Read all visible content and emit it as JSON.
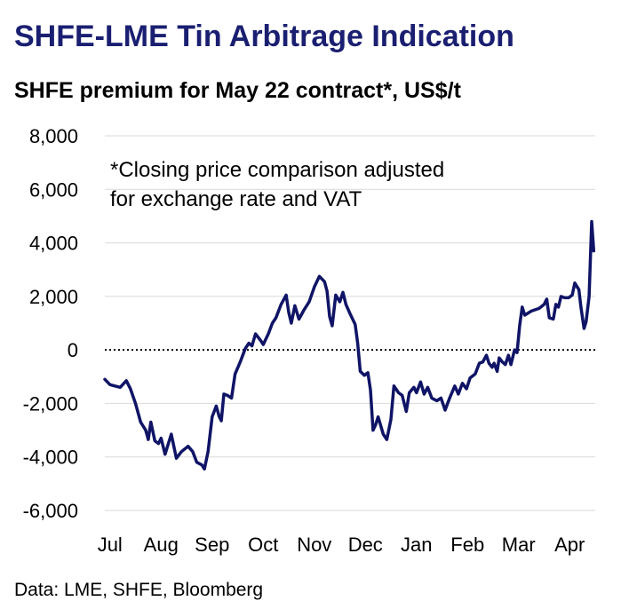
{
  "title": "SHFE-LME Tin Arbitrage Indication",
  "subtitle": "SHFE premium for May 22 contract*, US$/t",
  "source": "Data: LME, SHFE, Bloomberg",
  "colors": {
    "title": "#1a1f71",
    "line": "#0f1466",
    "grid": "#d9d9d9",
    "zero_line": "#000000"
  },
  "chart_data": {
    "type": "line",
    "title": "SHFE-LME Tin Arbitrage Indication",
    "ylabel": "SHFE premium for May 22 contract*, US$/t",
    "ylim": [
      -6000,
      8000
    ],
    "xlim": [
      0,
      9.6
    ],
    "yticks": [
      8000,
      6000,
      4000,
      2000,
      0,
      -2000,
      -4000,
      -6000
    ],
    "ytick_labels": [
      "8,000",
      "6,000",
      "4,000",
      "2,000",
      "0",
      "-2,000",
      "-4,000",
      "-6,000"
    ],
    "xtick_labels": [
      "Jul",
      "Aug",
      "Sep",
      "Oct",
      "Nov",
      "Dec",
      "Jan",
      "Feb",
      "Mar",
      "Apr"
    ],
    "grid": true,
    "zero_line": "dotted",
    "annotation_lines": [
      "*Closing price comparison adjusted",
      "for exchange rate and VAT"
    ],
    "series": [
      {
        "values": [
          [
            0.0,
            -1100
          ],
          [
            0.1,
            -1300
          ],
          [
            0.3,
            -1400
          ],
          [
            0.42,
            -1150
          ],
          [
            0.5,
            -1450
          ],
          [
            0.6,
            -2000
          ],
          [
            0.7,
            -2700
          ],
          [
            0.8,
            -3000
          ],
          [
            0.85,
            -3350
          ],
          [
            0.9,
            -2700
          ],
          [
            0.98,
            -3400
          ],
          [
            1.05,
            -3500
          ],
          [
            1.1,
            -3300
          ],
          [
            1.18,
            -3900
          ],
          [
            1.3,
            -3150
          ],
          [
            1.4,
            -4050
          ],
          [
            1.5,
            -3800
          ],
          [
            1.63,
            -3600
          ],
          [
            1.72,
            -3800
          ],
          [
            1.8,
            -4200
          ],
          [
            1.9,
            -4300
          ],
          [
            1.95,
            -4450
          ],
          [
            2.02,
            -3800
          ],
          [
            2.1,
            -2500
          ],
          [
            2.18,
            -2100
          ],
          [
            2.24,
            -2500
          ],
          [
            2.28,
            -2650
          ],
          [
            2.33,
            -1650
          ],
          [
            2.4,
            -1700
          ],
          [
            2.48,
            -1800
          ],
          [
            2.55,
            -900
          ],
          [
            2.65,
            -450
          ],
          [
            2.75,
            50
          ],
          [
            2.82,
            250
          ],
          [
            2.88,
            150
          ],
          [
            2.95,
            600
          ],
          [
            3.05,
            350
          ],
          [
            3.1,
            200
          ],
          [
            3.2,
            600
          ],
          [
            3.28,
            1000
          ],
          [
            3.35,
            1200
          ],
          [
            3.45,
            1700
          ],
          [
            3.55,
            2050
          ],
          [
            3.6,
            1400
          ],
          [
            3.65,
            1000
          ],
          [
            3.72,
            1650
          ],
          [
            3.8,
            1150
          ],
          [
            3.9,
            1500
          ],
          [
            4.0,
            1800
          ],
          [
            4.1,
            2350
          ],
          [
            4.2,
            2750
          ],
          [
            4.3,
            2550
          ],
          [
            4.35,
            2200
          ],
          [
            4.4,
            1250
          ],
          [
            4.45,
            900
          ],
          [
            4.52,
            2050
          ],
          [
            4.6,
            1800
          ],
          [
            4.66,
            2150
          ],
          [
            4.72,
            1700
          ],
          [
            4.8,
            1350
          ],
          [
            4.9,
            950
          ],
          [
            4.95,
            250
          ],
          [
            5.0,
            -800
          ],
          [
            5.08,
            -950
          ],
          [
            5.15,
            -850
          ],
          [
            5.2,
            -1500
          ],
          [
            5.25,
            -3000
          ],
          [
            5.3,
            -2800
          ],
          [
            5.35,
            -2500
          ],
          [
            5.45,
            -3150
          ],
          [
            5.52,
            -3350
          ],
          [
            5.6,
            -2600
          ],
          [
            5.66,
            -1350
          ],
          [
            5.75,
            -1600
          ],
          [
            5.82,
            -1700
          ],
          [
            5.9,
            -2300
          ],
          [
            5.96,
            -1600
          ],
          [
            6.05,
            -1400
          ],
          [
            6.1,
            -1600
          ],
          [
            6.18,
            -1200
          ],
          [
            6.25,
            -1650
          ],
          [
            6.32,
            -1400
          ],
          [
            6.4,
            -1800
          ],
          [
            6.5,
            -1900
          ],
          [
            6.58,
            -1800
          ],
          [
            6.66,
            -2250
          ],
          [
            6.75,
            -1800
          ],
          [
            6.85,
            -1350
          ],
          [
            6.92,
            -1650
          ],
          [
            7.0,
            -1250
          ],
          [
            7.08,
            -1450
          ],
          [
            7.15,
            -1050
          ],
          [
            7.25,
            -900
          ],
          [
            7.33,
            -500
          ],
          [
            7.4,
            -450
          ],
          [
            7.47,
            -200
          ],
          [
            7.52,
            -500
          ],
          [
            7.58,
            -650
          ],
          [
            7.62,
            -500
          ],
          [
            7.68,
            -800
          ],
          [
            7.72,
            -300
          ],
          [
            7.78,
            -450
          ],
          [
            7.84,
            -550
          ],
          [
            7.9,
            -200
          ],
          [
            7.95,
            -550
          ],
          [
            8.02,
            0
          ],
          [
            8.07,
            -100
          ],
          [
            8.12,
            900
          ],
          [
            8.17,
            1600
          ],
          [
            8.22,
            1300
          ],
          [
            8.35,
            1450
          ],
          [
            8.5,
            1550
          ],
          [
            8.6,
            1700
          ],
          [
            8.65,
            1900
          ],
          [
            8.7,
            1200
          ],
          [
            8.78,
            1150
          ],
          [
            8.83,
            1700
          ],
          [
            8.88,
            1600
          ],
          [
            8.93,
            2000
          ],
          [
            9.0,
            1950
          ],
          [
            9.08,
            1950
          ],
          [
            9.15,
            2050
          ],
          [
            9.2,
            2500
          ],
          [
            9.28,
            2250
          ],
          [
            9.32,
            1600
          ],
          [
            9.38,
            800
          ],
          [
            9.42,
            1050
          ],
          [
            9.48,
            2000
          ],
          [
            9.53,
            4800
          ],
          [
            9.57,
            3700
          ]
        ]
      }
    ]
  }
}
